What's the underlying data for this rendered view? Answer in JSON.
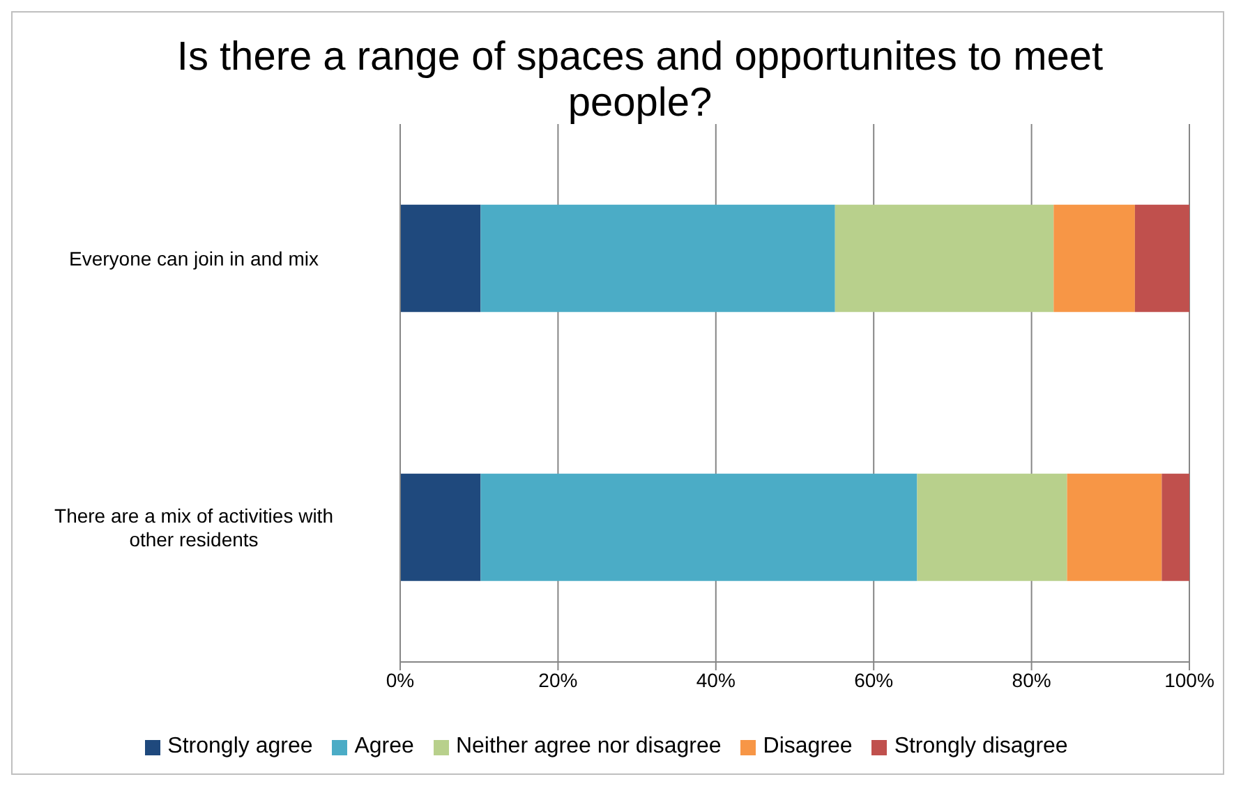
{
  "chart_data": {
    "type": "bar",
    "orientation": "horizontal",
    "stacked": true,
    "title": "Is there a range of spaces and opportunites to meet people?",
    "categories": [
      "Everyone can join in and mix",
      "There are a mix of activities  with other residents"
    ],
    "series": [
      {
        "name": "Strongly agree",
        "color": "#1f497d",
        "values": [
          10.2,
          10.2
        ]
      },
      {
        "name": "Agree",
        "color": "#4bacc6",
        "values": [
          44.9,
          55.3
        ]
      },
      {
        "name": "Neither agree nor disagree",
        "color": "#b8d08c",
        "values": [
          27.7,
          19.0
        ]
      },
      {
        "name": "Disagree",
        "color": "#f79646",
        "values": [
          10.3,
          12.0
        ]
      },
      {
        "name": "Strongly disagree",
        "color": "#c0504d",
        "values": [
          6.9,
          3.5
        ]
      }
    ],
    "xlim": [
      0,
      100
    ],
    "xticks": [
      {
        "value": 0,
        "label": "0%"
      },
      {
        "value": 20,
        "label": "20%"
      },
      {
        "value": 40,
        "label": "40%"
      },
      {
        "value": 60,
        "label": "60%"
      },
      {
        "value": 80,
        "label": "80%"
      },
      {
        "value": 100,
        "label": "100%"
      }
    ],
    "grid": "x",
    "legend": "bottom"
  }
}
